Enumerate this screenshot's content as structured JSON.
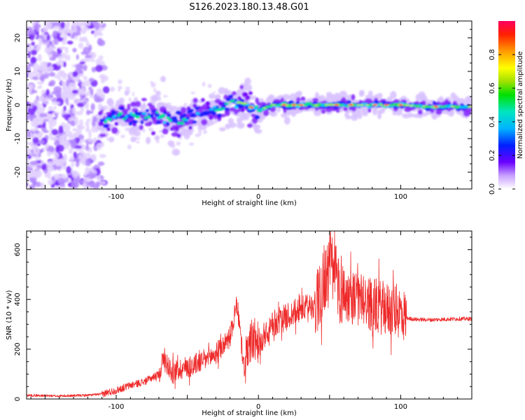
{
  "title": "S126.2023.180.13.48.G01",
  "chart_data": [
    {
      "type": "heatmap",
      "xlabel": "Height of straight line (km)",
      "ylabel": "Frequency (Hz)",
      "xlim": [
        -163,
        150
      ],
      "ylim": [
        -25,
        25
      ],
      "xticks": [
        -100,
        0,
        100
      ],
      "yticks": [
        -20,
        -10,
        0,
        10,
        20
      ],
      "ridge": {
        "x": [
          -110,
          -100,
          -90,
          -80,
          -70,
          -60,
          -50,
          -40,
          -30,
          -20,
          -10,
          -2,
          0,
          10,
          20,
          40,
          60,
          80,
          100,
          120,
          148
        ],
        "freq": [
          -5.5,
          -2.5,
          -3,
          -3.5,
          -3,
          -5,
          -4,
          -2,
          -1.5,
          1,
          0.5,
          -1.5,
          -1.5,
          0,
          0,
          0,
          0,
          0,
          0,
          -0.5,
          -0.5
        ]
      },
      "hot_spots_x": [
        -5,
        18,
        25,
        30,
        55,
        65,
        82,
        90,
        100,
        125
      ],
      "colorbar": {
        "label": "Normalized spectral amplitude",
        "range": [
          0,
          1
        ],
        "ticks": [
          "0.0",
          "0.2",
          "0.4",
          "0.6",
          "0.8"
        ]
      }
    },
    {
      "type": "line",
      "xlabel": "Height of straight line (km)",
      "ylabel": "SNR (10 * v/v)",
      "xlim": [
        -163,
        150
      ],
      "ylim": [
        0,
        675
      ],
      "xticks": [
        -100,
        0,
        100
      ],
      "yticks": [
        0,
        200,
        400,
        600
      ],
      "color": "#ee2a2a",
      "series": [
        {
          "x": [
            -163,
            -140,
            -120,
            -110,
            -100,
            -90,
            -80,
            -70,
            -67,
            -60,
            -50,
            -40,
            -30,
            -20,
            -15,
            -10,
            -5,
            0,
            5,
            10,
            20,
            30,
            40,
            45,
            50,
            55,
            60,
            70,
            80,
            90,
            100,
            104,
            110,
            120,
            130,
            140,
            150
          ],
          "y": [
            15,
            12,
            15,
            20,
            35,
            55,
            70,
            100,
            160,
            110,
            130,
            150,
            180,
            250,
            380,
            120,
            240,
            230,
            235,
            300,
            330,
            360,
            380,
            470,
            520,
            490,
            420,
            400,
            380,
            360,
            350,
            325,
            320,
            318,
            320,
            322,
            322
          ]
        }
      ]
    }
  ]
}
